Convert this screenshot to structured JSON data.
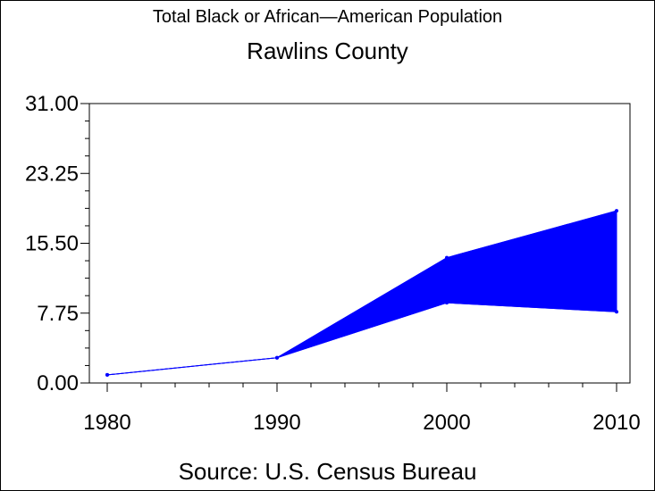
{
  "chart_data": {
    "type": "area",
    "title": "Total Black or African—American Population",
    "subtitle": "Rawlins County",
    "source": "Source: U.S. Census Bureau",
    "x": [
      1980,
      1990,
      2000,
      2010
    ],
    "x_tick_labels": [
      "1980",
      "1990",
      "2000",
      "2010"
    ],
    "y_tick_labels": [
      "0.00",
      "7.75",
      "15.50",
      "23.25",
      "31.00"
    ],
    "ylim": [
      0,
      31
    ],
    "series": [
      {
        "values": [
          0.9,
          2.8,
          13.9,
          19.1
        ]
      },
      {
        "values": [
          0.9,
          2.8,
          8.9,
          7.9
        ]
      }
    ],
    "fill_color": "#0000ff",
    "line_color": "#0000ff",
    "grid": false
  }
}
